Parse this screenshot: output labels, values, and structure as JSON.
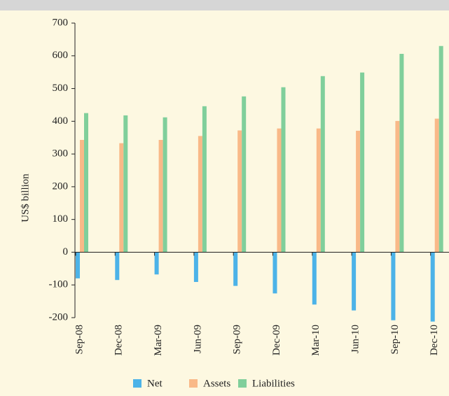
{
  "chart_data": {
    "type": "bar",
    "y_label": "US$ billion",
    "categories": [
      "Sep-08",
      "Dec-08",
      "Mar-09",
      "Jun-09",
      "Sep-09",
      "Dec-09",
      "Mar-10",
      "Jun-10",
      "Sep-10",
      "Dec-10"
    ],
    "series": [
      {
        "name": "Net",
        "color": "#4cb3e8",
        "values": [
          -80,
          -85,
          -68,
          -91,
          -103,
          -126,
          -160,
          -178,
          -208,
          -212
        ]
      },
      {
        "name": "Assets",
        "color": "#f9b988",
        "values": [
          343,
          333,
          343,
          355,
          372,
          378,
          378,
          371,
          401,
          408
        ]
      },
      {
        "name": "Liabilities",
        "color": "#80cf9b",
        "values": [
          425,
          418,
          412,
          446,
          476,
          504,
          538,
          549,
          606,
          630
        ]
      }
    ],
    "ylim": [
      -200,
      700
    ],
    "yticks": [
      -200,
      -100,
      0,
      100,
      200,
      300,
      400,
      500,
      600,
      700
    ],
    "legend": "bottom"
  }
}
